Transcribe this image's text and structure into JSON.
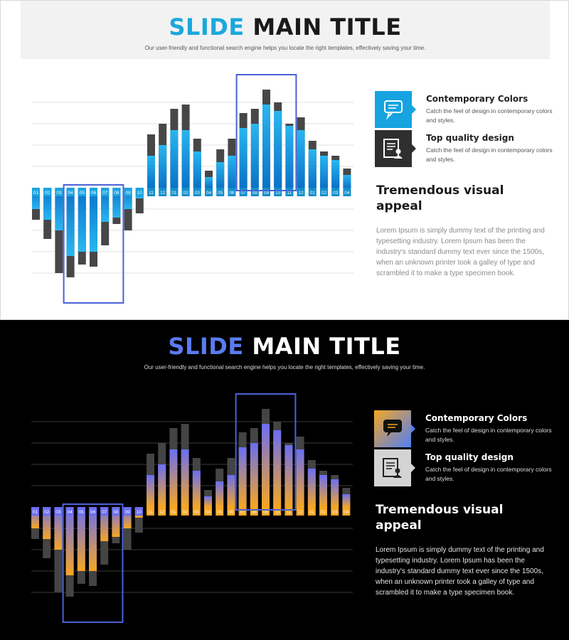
{
  "slides": [
    {
      "title_accent": "SLIDE",
      "title_rest": "MAIN TITLE",
      "subtitle": "Our user-friendly and functional search engine helps you locate the right templates, effectively saving your time.",
      "features": [
        {
          "icon": "chat-bubble-icon",
          "title": "Contemporary Colors",
          "desc": "Catch the feel of design in contemporary colors and styles."
        },
        {
          "icon": "document-person-icon",
          "title": "Top quality design",
          "desc": "Catch the feel of design in contemporary colors and styles."
        }
      ],
      "heading": "Tremendous visual appeal",
      "body": "Lorem Ipsum is simply dummy text of the printing and typesetting industry. Lorem Ipsum has been the industry's standard dummy text ever since the 1500s, when an unknown printer took a galley of type and scrambled it to make a type specimen book."
    },
    {
      "title_accent": "SLIDE",
      "title_rest": "MAIN TITLE",
      "subtitle": "Our user-friendly and functional search engine helps you locate the right templates, effectively saving your time.",
      "features": [
        {
          "icon": "chat-bubble-icon",
          "title": "Contemporary Colors",
          "desc": "Catch the feel of design in contemporary colors and styles."
        },
        {
          "icon": "document-person-icon",
          "title": "Top quality design",
          "desc": "Catch the feel of design in contemporary colors and styles."
        }
      ],
      "heading": "Tremendous visual appeal",
      "body": "Lorem Ipsum is simply dummy text of the printing and typesetting industry. Lorem Ipsum has been the industry's standard dummy text ever since the 1500s, when an unknown printer took a galley of type and scrambled it to make a type specimen book."
    }
  ],
  "theme_colors": {
    "light_accent": "#1aa8dc",
    "light_bar_top": "#29b6f0",
    "light_bar_bottom": "#0a72c8",
    "dark_bar": "#444444",
    "dark_accent": "#5b7bf0",
    "dark_gradient_blue": "#6b6ef2",
    "dark_gradient_orange": "#f6a623",
    "highlight_box": "#4a62d8"
  },
  "chart_data": {
    "type": "bar",
    "categories": [
      "01",
      "02",
      "03",
      "04",
      "05",
      "06",
      "07",
      "08",
      "09",
      "10",
      "11",
      "12",
      "01",
      "02",
      "03",
      "04",
      "05",
      "06",
      "07",
      "08",
      "09",
      "10",
      "11",
      "12",
      "01",
      "02",
      "03",
      "04"
    ],
    "series": [
      {
        "values": [
          -1.0,
          -1.5,
          -2.0,
          -3.2,
          -3.0,
          -3.0,
          -1.6,
          -1.4,
          -1.0,
          -0.5,
          1.5,
          2.0,
          2.7,
          2.7,
          1.7,
          0.5,
          1.2,
          1.5,
          2.8,
          3.0,
          3.9,
          3.6,
          2.9,
          2.7,
          1.8,
          1.5,
          1.3,
          0.6
        ]
      },
      {
        "values": [
          -1.5,
          -2.4,
          -4.0,
          -4.2,
          -3.6,
          -3.7,
          -2.7,
          -1.7,
          -2.0,
          -1.2,
          2.5,
          3.0,
          3.7,
          3.9,
          2.3,
          0.8,
          1.8,
          2.3,
          3.5,
          3.7,
          4.6,
          4.0,
          3.0,
          3.3,
          2.2,
          1.7,
          1.5,
          0.9
        ]
      }
    ],
    "ylim": [
      -4.5,
      5.0
    ],
    "grid": true,
    "highlight_groups": [
      [
        3,
        7
      ],
      [
        18,
        22
      ]
    ]
  }
}
